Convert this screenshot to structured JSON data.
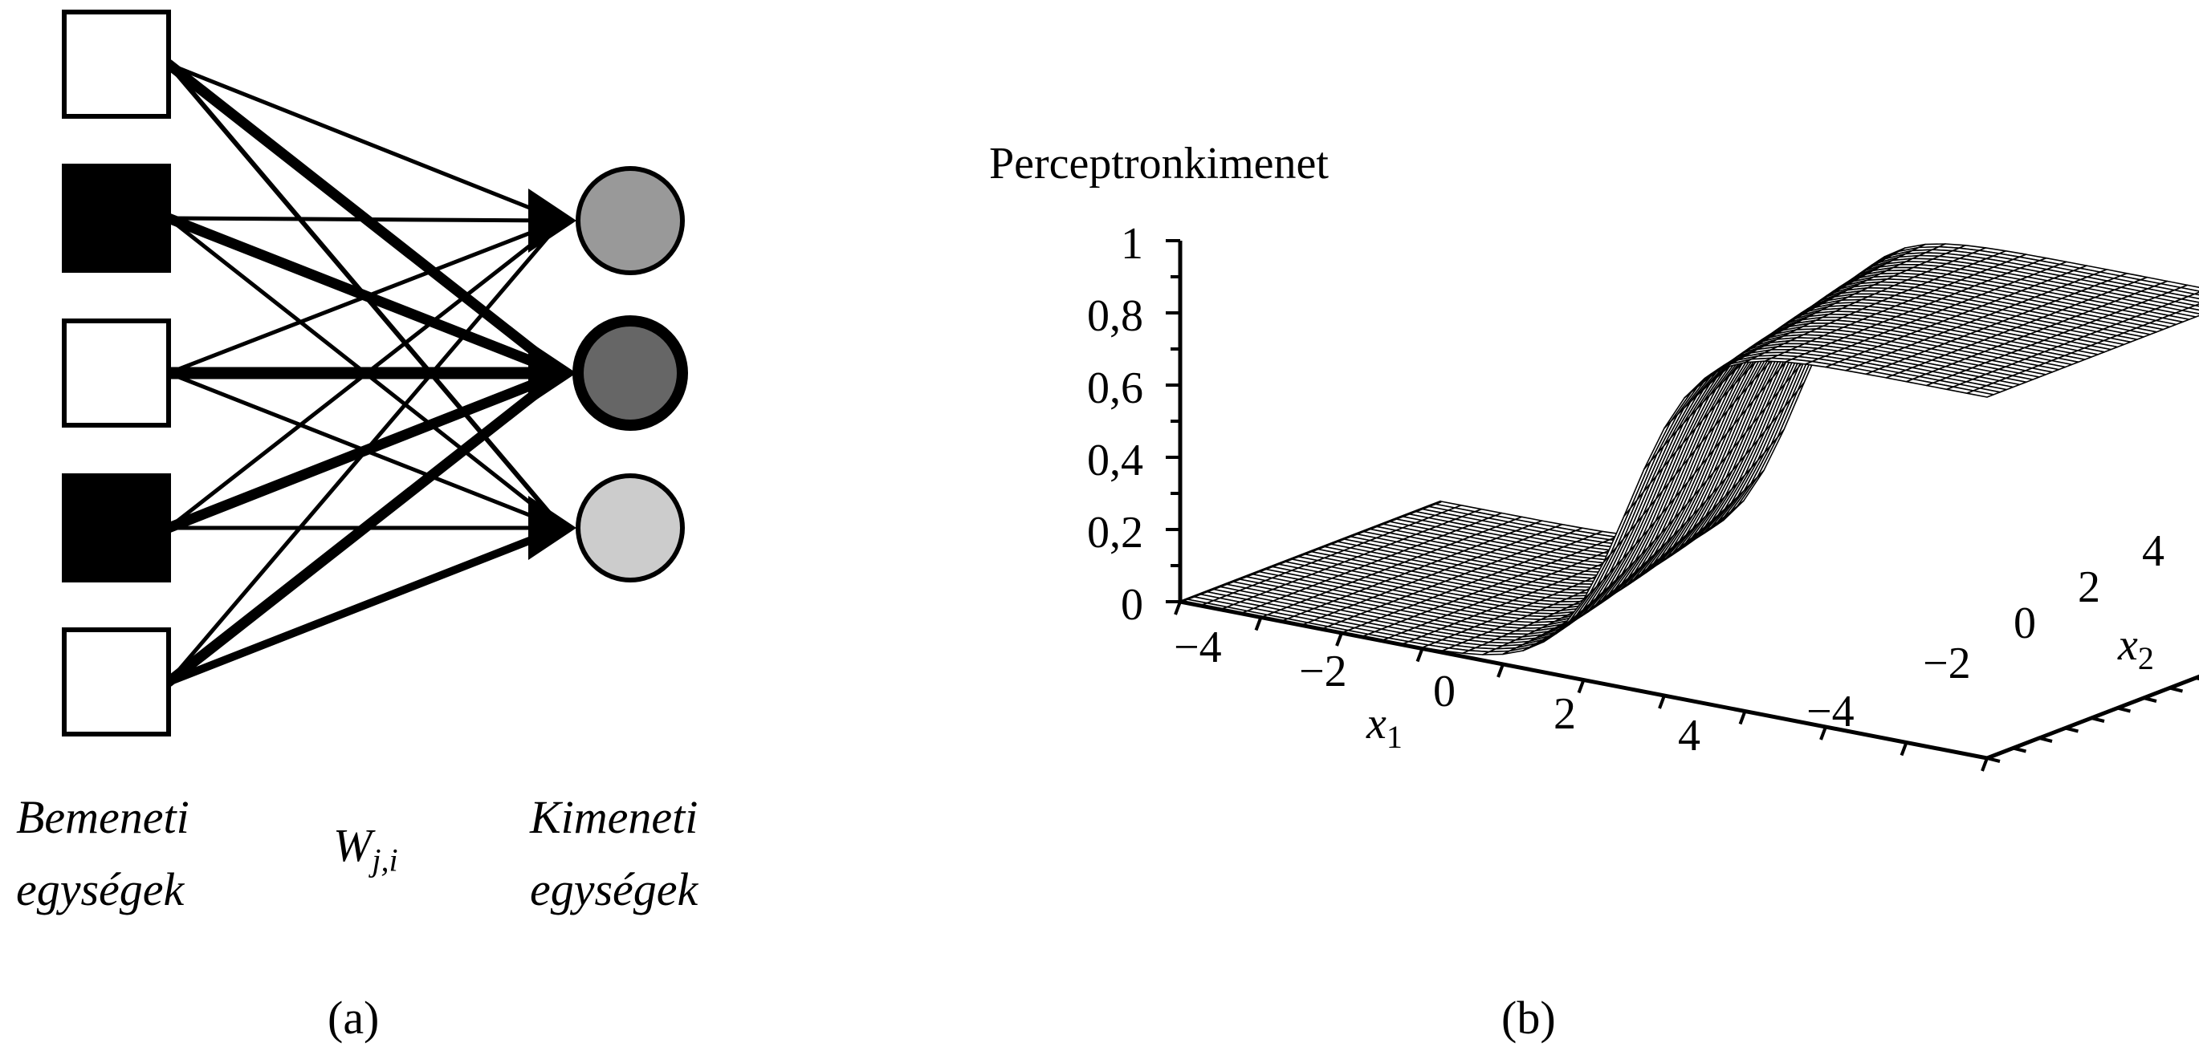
{
  "panel_a": {
    "input_label_line1": "Bemeneti",
    "input_label_line2": "egységek",
    "weight_label": "W",
    "weight_subscript": "j,i",
    "output_label_line1": "Kimeneti",
    "output_label_line2": "egységek",
    "caption": "(a)",
    "input_units": [
      "white",
      "black",
      "white",
      "black",
      "white"
    ],
    "output_units": [
      "#999999",
      "#666666",
      "#cccccc"
    ]
  },
  "panel_b": {
    "caption": "(b)",
    "z_axis_title": "Perceptronkimenet",
    "z_ticks": [
      "1",
      "0,8",
      "0,6",
      "0,4",
      "0,2",
      "0"
    ],
    "x1_ticks": [
      "−4",
      "−2",
      "0",
      "2",
      "4"
    ],
    "x1_label": "x",
    "x1_subscript": "1",
    "x2_ticks": [
      "−4",
      "−2",
      "0",
      "2",
      "4"
    ],
    "x2_label": "x",
    "x2_subscript": "2"
  }
}
